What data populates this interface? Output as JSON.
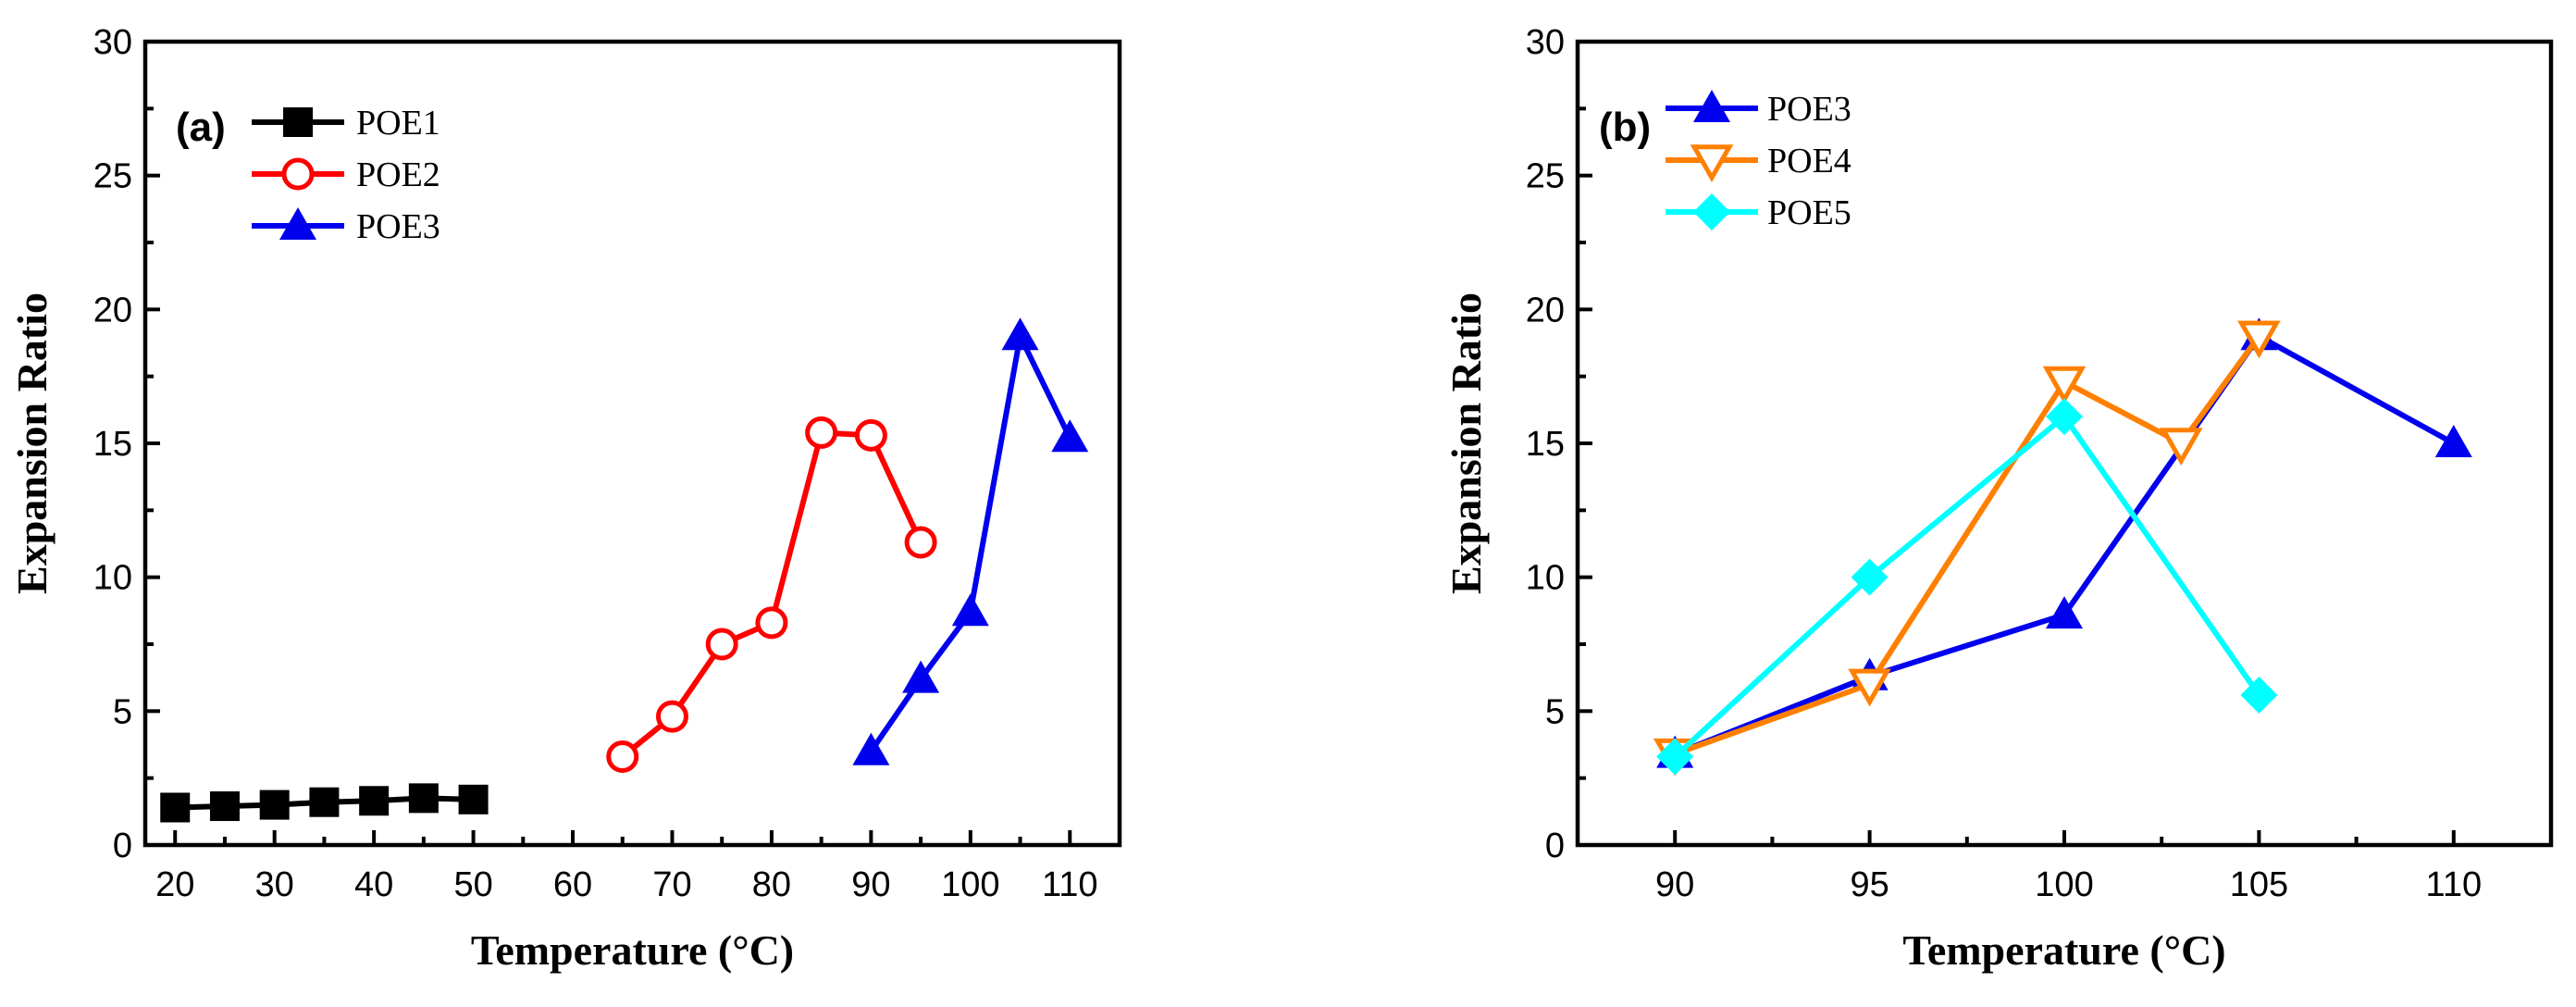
{
  "chart_data": [
    {
      "type": "line",
      "panel_label": "(a)",
      "xlabel": "Temperature (°C)",
      "ylabel": "Expansion Ratio",
      "xlim": [
        17,
        115
      ],
      "ylim": [
        0,
        30
      ],
      "xticks": [
        20,
        30,
        40,
        50,
        60,
        70,
        80,
        90,
        100,
        110
      ],
      "yticks": [
        0,
        5,
        10,
        15,
        20,
        25,
        30
      ],
      "legend_position": "top-left",
      "series": [
        {
          "name": "POE1",
          "color": "#000000",
          "marker": "square-filled",
          "x": [
            20,
            25,
            30,
            35,
            40,
            45,
            50
          ],
          "y": [
            1.4,
            1.45,
            1.5,
            1.6,
            1.65,
            1.75,
            1.7
          ]
        },
        {
          "name": "POE2",
          "color": "#ff0000",
          "marker": "circle-open",
          "x": [
            65,
            70,
            75,
            80,
            85,
            90,
            95
          ],
          "y": [
            3.3,
            4.8,
            7.5,
            8.3,
            15.4,
            15.3,
            11.3
          ]
        },
        {
          "name": "POE3",
          "color": "#0000ee",
          "marker": "triangle-up-filled",
          "x": [
            90,
            95,
            100,
            105,
            110
          ],
          "y": [
            3.5,
            6.2,
            8.7,
            19.0,
            15.2
          ]
        }
      ]
    },
    {
      "type": "line",
      "panel_label": "(b)",
      "xlabel": "Temperature (°C)",
      "ylabel": "Expansion Ratio",
      "xlim": [
        87.5,
        112.5
      ],
      "ylim": [
        0,
        30
      ],
      "xticks": [
        90,
        95,
        100,
        105,
        110
      ],
      "yticks": [
        0,
        5,
        10,
        15,
        20,
        25,
        30
      ],
      "legend_position": "top-left",
      "series": [
        {
          "name": "POE3",
          "color": "#0000ee",
          "marker": "triangle-up-filled",
          "x": [
            90,
            95,
            100,
            105,
            110
          ],
          "y": [
            3.4,
            6.3,
            8.6,
            19.0,
            15.0
          ]
        },
        {
          "name": "POE4",
          "color": "#ff8000",
          "marker": "triangle-down-open",
          "x": [
            90,
            95,
            100,
            103,
            105
          ],
          "y": [
            3.4,
            6.0,
            17.3,
            15.0,
            19.0
          ]
        },
        {
          "name": "POE5",
          "color": "#00ffff",
          "marker": "diamond-filled",
          "x": [
            90,
            95,
            100,
            105
          ],
          "y": [
            3.3,
            10.0,
            16.0,
            5.6
          ]
        }
      ]
    }
  ]
}
